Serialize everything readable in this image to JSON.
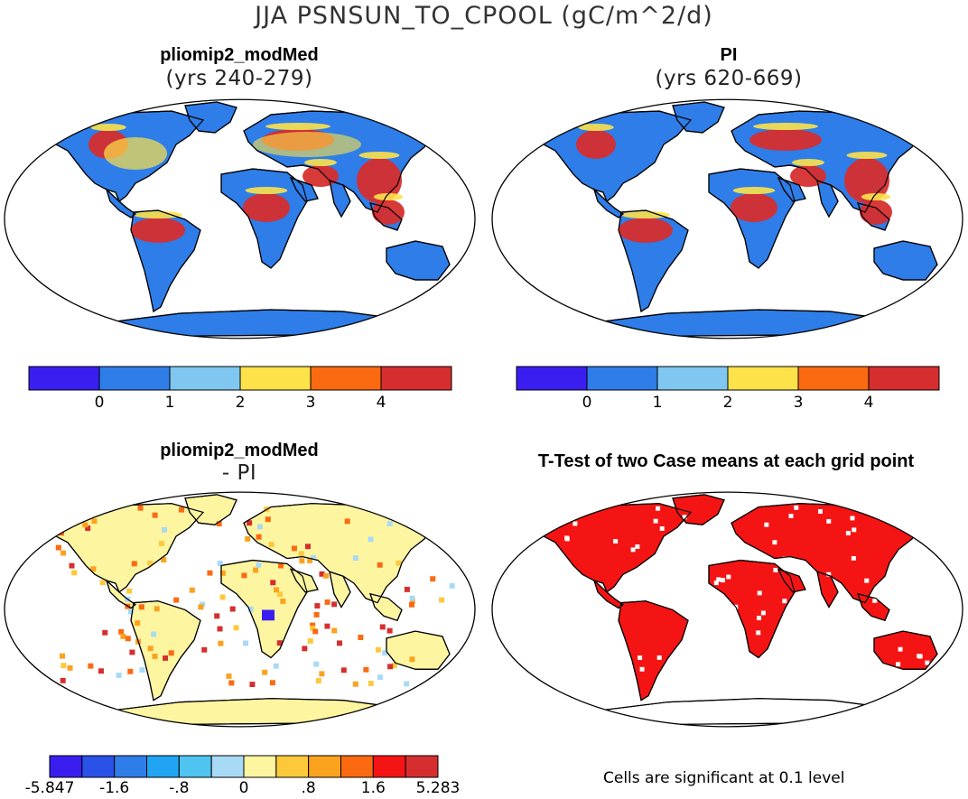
{
  "title": "JJA PSNSUN_TO_CPOOL (gC/m^2/d)",
  "panels": [
    {
      "title": "pliomip2_modMed",
      "subtitle": "(yrs 240-279)"
    },
    {
      "title": "PI",
      "subtitle": "(yrs 620-669)"
    },
    {
      "title": "pliomip2_modMed",
      "subtitle": "- PI"
    },
    {
      "title": "T-Test of two Case means at each grid point",
      "subtitle": ""
    }
  ],
  "colorbar_top": {
    "colors": [
      "#3a1ef0",
      "#2e7de8",
      "#7fc7f0",
      "#fde24a",
      "#fb6a10",
      "#d62e2e"
    ],
    "labels": [
      "0",
      "1",
      "2",
      "3",
      "4"
    ]
  },
  "colorbar_diff": {
    "colors": [
      "#3a1ef0",
      "#2a52e8",
      "#2e7de8",
      "#21a4f3",
      "#4fc4f0",
      "#a9daf5",
      "#fdf5a0",
      "#fcc93b",
      "#fba21f",
      "#fb6a10",
      "#f51414",
      "#d62e2e"
    ],
    "labels": [
      "-5.847",
      "-1.6",
      "-.8",
      "0",
      ".8",
      "1.6",
      "5.283"
    ]
  },
  "significance_note": "Cells are significant at 0.1 level",
  "map_colors": {
    "land_base_top": "#2e7de8",
    "tropics_high": "#d62e2e",
    "warm_mid": "#fde24a",
    "diff_base": "#fdf5a0",
    "significant": "#f51414"
  }
}
